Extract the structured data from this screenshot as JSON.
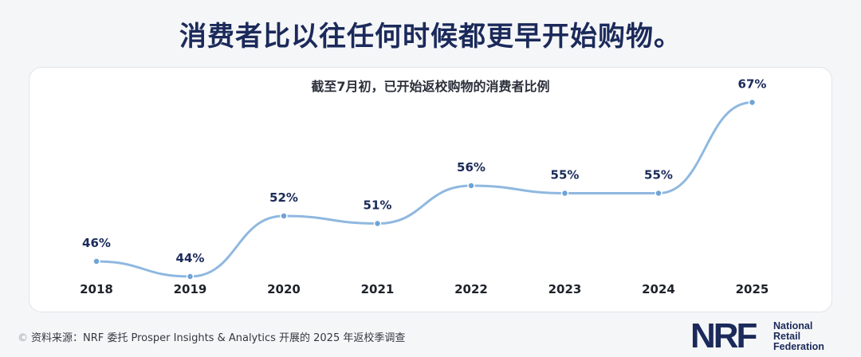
{
  "headline": "消费者比以往任何时候都更早开始购物。",
  "chart_data": {
    "type": "line",
    "title": "截至7月初，已开始返校购物的消费者比例",
    "x": [
      "2018",
      "2019",
      "2020",
      "2021",
      "2022",
      "2023",
      "2024",
      "2025"
    ],
    "values": [
      46,
      44,
      52,
      51,
      56,
      55,
      55,
      67
    ],
    "data_labels": [
      "46%",
      "44%",
      "52%",
      "51%",
      "56%",
      "55%",
      "55%",
      "67%"
    ],
    "ylim": [
      40,
      70
    ],
    "grid": false,
    "line_color": "#8fb8e0",
    "marker_color": "#6fa3d6",
    "label_color": "#1b2a5a"
  },
  "footer": {
    "source": "资料来源：NRF 委托 Prosper Insights & Analytics 开展的 2025 年返校季调查",
    "source_mark": "©",
    "logo_text": "NRF",
    "org_name": [
      "National",
      "Retail",
      "Federation"
    ]
  }
}
